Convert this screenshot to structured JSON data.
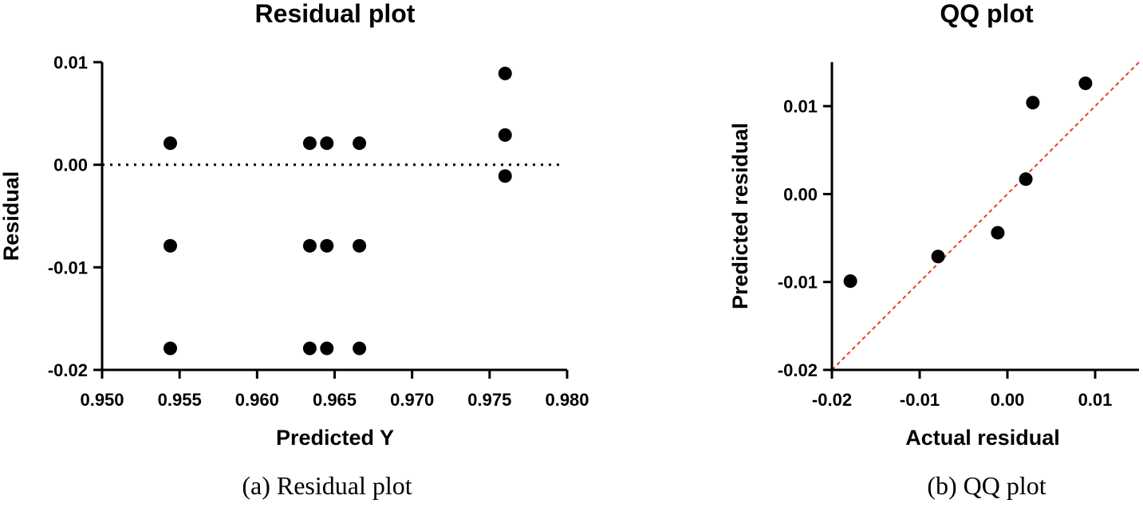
{
  "chart_data": [
    {
      "type": "scatter",
      "title": "Residual plot",
      "xlabel": "Predicted Y",
      "ylabel": "Residual",
      "caption": "(a) Residual plot",
      "xlim": [
        0.95,
        0.98
      ],
      "ylim": [
        -0.02,
        0.01
      ],
      "xticks": [
        "0.950",
        "0.955",
        "0.960",
        "0.965",
        "0.970",
        "0.975",
        "0.980"
      ],
      "yticks": [
        "-0.02",
        "-0.01",
        "0.00",
        "0.01"
      ],
      "reference_line": {
        "style": "dotted",
        "color": "#000000",
        "y": 0.0
      },
      "points": [
        {
          "x": 0.9544,
          "y": 0.0021
        },
        {
          "x": 0.9544,
          "y": -0.0079
        },
        {
          "x": 0.9544,
          "y": -0.0179
        },
        {
          "x": 0.9634,
          "y": 0.0021
        },
        {
          "x": 0.9634,
          "y": -0.0079
        },
        {
          "x": 0.9634,
          "y": -0.0179
        },
        {
          "x": 0.9645,
          "y": 0.0021
        },
        {
          "x": 0.9645,
          "y": -0.0079
        },
        {
          "x": 0.9645,
          "y": -0.0179
        },
        {
          "x": 0.9666,
          "y": 0.0021
        },
        {
          "x": 0.9666,
          "y": -0.0079
        },
        {
          "x": 0.9666,
          "y": -0.0179
        },
        {
          "x": 0.976,
          "y": 0.0089
        },
        {
          "x": 0.976,
          "y": 0.0029
        },
        {
          "x": 0.976,
          "y": -0.0011
        }
      ],
      "grid": false
    },
    {
      "type": "scatter",
      "title": "QQ plot",
      "xlabel": "Actual residual",
      "ylabel": "Predicted residual",
      "caption": "(b) QQ plot",
      "xlim": [
        -0.02,
        0.015
      ],
      "ylim": [
        -0.02,
        0.015
      ],
      "xticks": [
        "-0.02",
        "-0.01",
        "0.00",
        "0.01"
      ],
      "yticks": [
        "-0.02",
        "-0.01",
        "0.00",
        "0.01"
      ],
      "reference_line": {
        "style": "dashed",
        "color": "#e8431c",
        "slope": 1,
        "intercept": 0
      },
      "points": [
        {
          "x": -0.0179,
          "y": -0.0099
        },
        {
          "x": -0.0079,
          "y": -0.0071
        },
        {
          "x": -0.0011,
          "y": -0.0044
        },
        {
          "x": 0.0021,
          "y": 0.0017
        },
        {
          "x": 0.0029,
          "y": 0.0104
        },
        {
          "x": 0.0089,
          "y": 0.0126
        }
      ],
      "grid": false
    }
  ]
}
